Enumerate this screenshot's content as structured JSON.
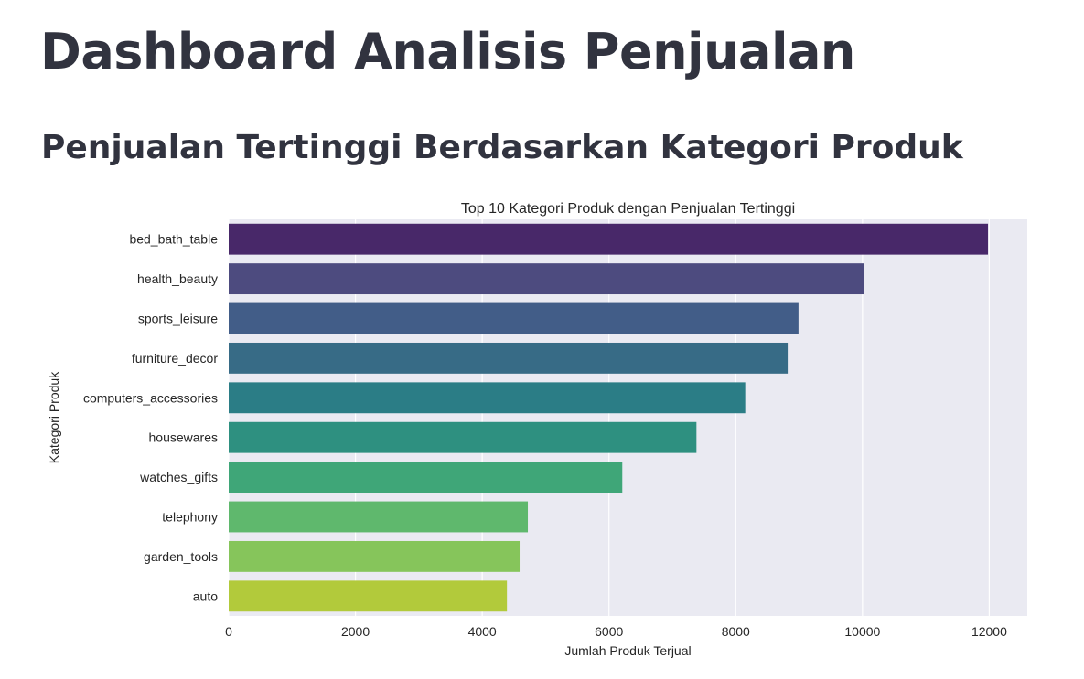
{
  "page": {
    "title": "Dashboard Analisis Penjualan",
    "section_title": "Penjualan Tertinggi Berdasarkan Kategori Produk"
  },
  "chart_data": {
    "type": "bar",
    "orientation": "horizontal",
    "title": "Top 10 Kategori Produk dengan Penjualan Tertinggi",
    "xlabel": "Jumlah Produk Terjual",
    "ylabel": "Kategori Produk",
    "categories": [
      "bed_bath_table",
      "health_beauty",
      "sports_leisure",
      "furniture_decor",
      "computers_accessories",
      "housewares",
      "watches_gifts",
      "telephony",
      "garden_tools",
      "auto"
    ],
    "values": [
      11980,
      10030,
      8990,
      8820,
      8150,
      7380,
      6210,
      4720,
      4590,
      4390
    ],
    "colors": [
      "#482869",
      "#4d4b7f",
      "#425d88",
      "#376b86",
      "#2b7d86",
      "#2e9080",
      "#3fa678",
      "#5fb86d",
      "#86c55b",
      "#b2ca3b"
    ],
    "xlim": [
      0,
      12600
    ],
    "xticks": [
      0,
      2000,
      4000,
      6000,
      8000,
      10000,
      12000
    ],
    "grid": true,
    "background": "#eaeaf2",
    "legend": "none"
  }
}
